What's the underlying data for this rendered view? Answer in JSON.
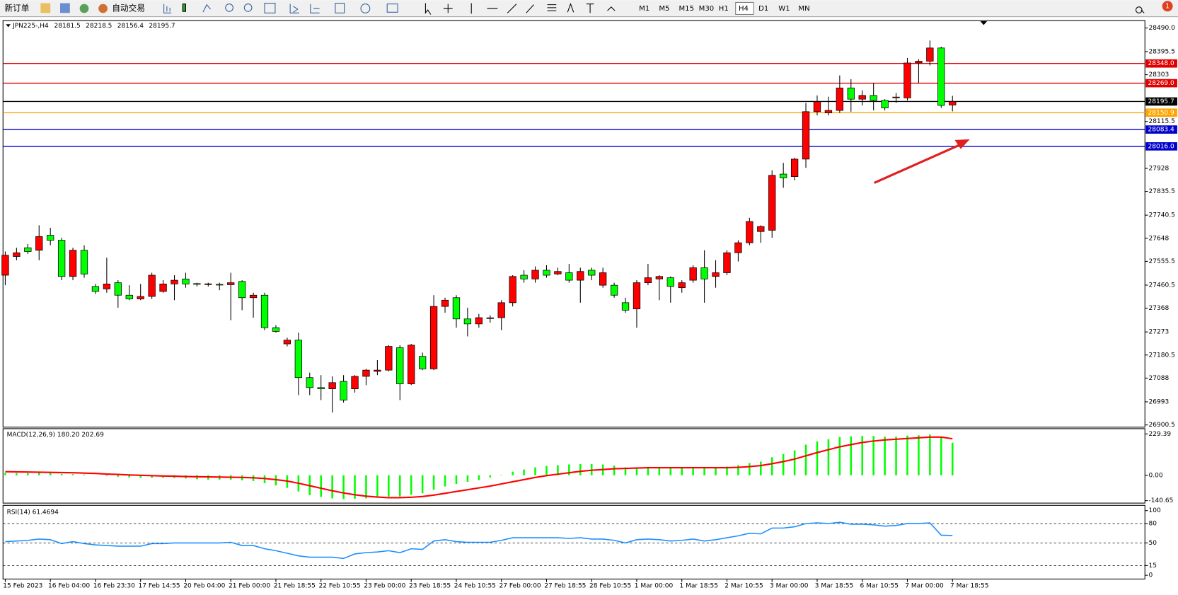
{
  "toolbar": {
    "buttons": [
      "新订单",
      "自动交易"
    ],
    "timeframes": [
      "M1",
      "M5",
      "M15",
      "M30",
      "H1",
      "H4",
      "D1",
      "W1",
      "MN"
    ],
    "active": "H4",
    "badge": 1
  },
  "chart_data": [
    {
      "type": "candlestick",
      "title": "JPN225-,H4",
      "x": [
        "15 Feb 2023",
        null,
        null,
        null,
        "16 Feb 04:00",
        null,
        null,
        null,
        "16 Feb 23:30",
        null,
        null,
        null,
        "17 Feb 14:55",
        null,
        null,
        null,
        "20 Feb 04:00",
        null,
        null,
        null,
        "21 Feb 00:00",
        null,
        null,
        null,
        "21 Feb 18:55",
        null,
        null,
        null,
        "22 Feb 10:55",
        null,
        null,
        null,
        "23 Feb 00:00",
        null,
        null,
        null,
        "23 Feb 18:55",
        null,
        null,
        null,
        "24 Feb 10:55",
        null,
        null,
        null,
        "27 Feb 00:00",
        null,
        null,
        null,
        "27 Feb 18:55",
        null,
        null,
        null,
        "28 Feb 10:55",
        null,
        null,
        null,
        "1 Mar 00:00",
        null,
        null,
        null,
        "1 Mar 18:55",
        null,
        null,
        null,
        "2 Mar 10:55",
        null,
        null,
        null,
        "3 Mar 00:00",
        null,
        null,
        null,
        "3 Mar 18:55",
        null,
        null,
        null,
        "6 Mar 10:55",
        null,
        null,
        null,
        "7 Mar 00:00",
        null,
        null,
        null,
        "7 Mar 18:55"
      ],
      "open": [
        27500,
        27575,
        27610,
        27600,
        27660,
        27640,
        27495,
        27600,
        27455,
        27445,
        27470,
        27420,
        27405,
        27415,
        27435,
        27465,
        27485,
        27465,
        27462,
        27462,
        27462,
        27475,
        27410,
        27420,
        27290,
        27225,
        27240,
        27090,
        27050,
        27045,
        27075,
        27045,
        27095,
        27115,
        27120,
        27210,
        27065,
        27175,
        27125,
        27375,
        27410,
        27325,
        27305,
        27325,
        27330,
        27390,
        27500,
        27485,
        27520,
        27505,
        27510,
        27480,
        27520,
        27460,
        27460,
        27390,
        27365,
        27470,
        27485,
        27490,
        27450,
        27480,
        27530,
        27495,
        27510,
        27590,
        27630,
        27675,
        27680,
        27905,
        27895,
        27965,
        28155,
        28150,
        28160,
        28250,
        28205,
        28220,
        28200,
        28210,
        28210,
        28350,
        28357,
        28410,
        28181.5
      ],
      "high": [
        27595,
        27610,
        27625,
        27700,
        27690,
        27650,
        27610,
        27620,
        27465,
        27570,
        27480,
        27460,
        27465,
        27510,
        27480,
        27500,
        27510,
        27470,
        27470,
        27470,
        27510,
        27480,
        27430,
        27430,
        27300,
        27250,
        27270,
        27110,
        27100,
        27095,
        27100,
        27100,
        27125,
        27160,
        27220,
        27220,
        27225,
        27190,
        27420,
        27410,
        27420,
        27370,
        27345,
        27340,
        27400,
        27500,
        27520,
        27535,
        27540,
        27530,
        27545,
        27530,
        27530,
        27530,
        27470,
        27410,
        27480,
        27545,
        27500,
        27495,
        27480,
        27540,
        27600,
        27560,
        27600,
        27640,
        27730,
        27700,
        27920,
        27950,
        27970,
        28190,
        28220,
        28215,
        28300,
        28285,
        28240,
        28270,
        28205,
        28230,
        28370,
        28365,
        28440,
        28415,
        28218.5
      ],
      "low": [
        27460,
        27560,
        27585,
        27560,
        27620,
        27480,
        27480,
        27490,
        27425,
        27430,
        27370,
        27400,
        27400,
        27405,
        27430,
        27400,
        27450,
        27455,
        27455,
        27440,
        27320,
        27360,
        27330,
        27280,
        27270,
        27215,
        27020,
        27020,
        27000,
        26950,
        26990,
        27030,
        27060,
        27100,
        27115,
        27000,
        27060,
        27120,
        27120,
        27350,
        27290,
        27255,
        27290,
        27310,
        27280,
        27375,
        27470,
        27470,
        27490,
        27500,
        27470,
        27390,
        27480,
        27450,
        27410,
        27350,
        27290,
        27460,
        27400,
        27390,
        27430,
        27470,
        27390,
        27450,
        27500,
        27555,
        27620,
        27630,
        27650,
        27850,
        27880,
        27930,
        28140,
        28140,
        28150,
        28155,
        28180,
        28160,
        28160,
        28190,
        28200,
        28270,
        28340,
        28170,
        28156.4
      ],
      "close": [
        27580,
        27590,
        27595,
        27655,
        27640,
        27495,
        27600,
        27505,
        27435,
        27465,
        27420,
        27405,
        27415,
        27500,
        27465,
        27480,
        27465,
        27462,
        27464,
        27460,
        27470,
        27410,
        27420,
        27290,
        27275,
        27240,
        27090,
        27050,
        27045,
        27070,
        27000,
        27095,
        27120,
        27120,
        27215,
        27065,
        27220,
        27125,
        27375,
        27400,
        27325,
        27305,
        27330,
        27328,
        27390,
        27495,
        27485,
        27520,
        27500,
        27515,
        27480,
        27515,
        27500,
        27510,
        27420,
        27360,
        27470,
        27490,
        27495,
        27455,
        27470,
        27530,
        27485,
        27510,
        27590,
        27630,
        27715,
        27695,
        27900,
        27890,
        27965,
        28155,
        28195,
        28160,
        28250,
        28205,
        28220,
        28200,
        28170,
        28212,
        28350,
        28357,
        28410,
        28180,
        28195.7
      ],
      "up_color": "#ff0000",
      "down_color": "#00ff00",
      "ylim": [
        26891.5,
        28520.1
      ],
      "yticks": [
        {
          "value": 28490,
          "label": "28490.0"
        },
        28395.5,
        28303,
        28115.5,
        27928,
        27835.5,
        27740.5,
        27648,
        27555.5,
        27460.5,
        27368,
        27273,
        27180.5,
        27088,
        26993,
        26900.5
      ],
      "hlines": [
        {
          "value": 28348,
          "label": "28348.0",
          "color": "#e00000"
        },
        {
          "value": 28269,
          "label": "28269.0",
          "color": "#e00000"
        },
        {
          "value": 28195.7,
          "label": "28195.7",
          "color": "#000000"
        },
        {
          "value": 28150.9,
          "label": "28150.9",
          "color": "#ffa500"
        },
        {
          "value": 28083.4,
          "label": "28083.4",
          "color": "#0000cc"
        },
        {
          "value": 28016,
          "label": "28016.0",
          "color": "#0000cc"
        }
      ]
    },
    {
      "type": "combo",
      "title": "MACD(12,26,9) 180.20 202.69",
      "ylim": [
        -154.3,
        258.5
      ],
      "yticks": [
        229.39,
        {
          "value": 0,
          "label": "0.00"
        },
        -140.65
      ],
      "series": [
        {
          "type": "bar",
          "color": "#00ff00",
          "values": [
            14,
            12,
            12,
            14,
            12,
            8,
            6,
            4,
            0,
            -4,
            -8,
            -12,
            -14,
            -14,
            -14,
            -16,
            -18,
            -22,
            -24,
            -24,
            -24,
            -28,
            -32,
            -44,
            -56,
            -70,
            -90,
            -110,
            -120,
            -128,
            -132,
            -130,
            -128,
            -124,
            -118,
            -118,
            -108,
            -100,
            -80,
            -62,
            -48,
            -36,
            -26,
            -12,
            2,
            20,
            32,
            44,
            52,
            56,
            60,
            62,
            62,
            60,
            54,
            44,
            44,
            44,
            44,
            40,
            40,
            42,
            40,
            42,
            48,
            56,
            68,
            76,
            100,
            118,
            138,
            170,
            188,
            200,
            212,
            216,
            218,
            218,
            214,
            214,
            220,
            222,
            226,
            210,
            180.2
          ]
        },
        {
          "type": "line",
          "color": "#ff0000",
          "values": [
            20,
            19,
            18,
            17,
            16,
            15,
            14,
            12,
            10,
            7,
            5,
            2,
            0,
            -2,
            -4,
            -5,
            -7,
            -8,
            -9,
            -10,
            -11,
            -12,
            -14,
            -18,
            -24,
            -32,
            -44,
            -58,
            -72,
            -86,
            -98,
            -108,
            -116,
            -121,
            -124,
            -124,
            -122,
            -118,
            -110,
            -100,
            -90,
            -80,
            -70,
            -60,
            -48,
            -36,
            -24,
            -12,
            -2,
            6,
            14,
            22,
            28,
            32,
            36,
            38,
            40,
            42,
            42,
            42,
            42,
            42,
            42,
            42,
            42,
            44,
            48,
            54,
            64,
            76,
            90,
            108,
            126,
            142,
            158,
            170,
            182,
            190,
            196,
            200,
            204,
            208,
            212,
            212,
            202.69
          ]
        }
      ]
    },
    {
      "type": "line",
      "title": "RSI(14) 61.4694",
      "ylim": [
        -5.8,
        108.1
      ],
      "yticks": [
        100,
        80,
        50,
        15,
        0
      ],
      "levels": [
        80,
        50,
        15
      ],
      "series": [
        {
          "color": "#1e90ff",
          "values": [
            52,
            53,
            54,
            56,
            55,
            49,
            52,
            49,
            47,
            46,
            45,
            45,
            45,
            49,
            49,
            50,
            50,
            50,
            50,
            50,
            51,
            46,
            46,
            41,
            38,
            34,
            30,
            28,
            28,
            28,
            26,
            33,
            35,
            36,
            38,
            35,
            41,
            40,
            53,
            55,
            52,
            51,
            51,
            51,
            54,
            58,
            58,
            58,
            58,
            58,
            57,
            58,
            56,
            56,
            54,
            50,
            55,
            56,
            55,
            53,
            54,
            56,
            53,
            55,
            58,
            61,
            65,
            64,
            73,
            73,
            75,
            80,
            81,
            80,
            82,
            79,
            79,
            78,
            76,
            77,
            80,
            80,
            81,
            62,
            61.4694
          ]
        }
      ]
    }
  ]
}
